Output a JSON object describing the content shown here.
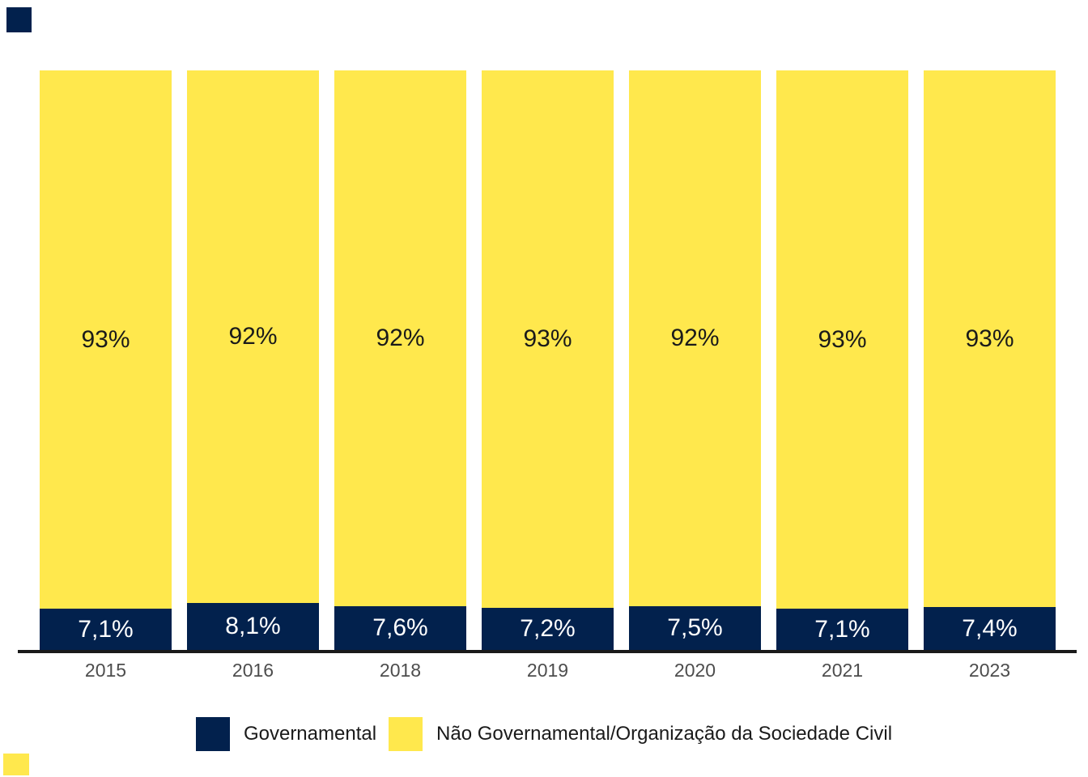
{
  "chart_data": {
    "type": "bar",
    "stacked": true,
    "orientation": "vertical",
    "title": "",
    "xlabel": "",
    "ylabel": "",
    "ylim": [
      0,
      100
    ],
    "grid": false,
    "legend_position": "bottom",
    "categories": [
      "2015",
      "2016",
      "2018",
      "2019",
      "2020",
      "2021",
      "2023"
    ],
    "series": [
      {
        "name": "Governamental",
        "color": "#02214d",
        "values": [
          7.1,
          8.1,
          7.6,
          7.2,
          7.5,
          7.1,
          7.4
        ],
        "labels": [
          "7,1%",
          "8,1%",
          "7,6%",
          "7,2%",
          "7,5%",
          "7,1%",
          "7,4%"
        ],
        "label_color": "#ffffff"
      },
      {
        "name": "Não Governamental/Organização da Sociedade Civil",
        "color": "#ffe84d",
        "values": [
          93,
          92,
          92,
          93,
          92,
          93,
          93
        ],
        "labels": [
          "93%",
          "92%",
          "92%",
          "93%",
          "92%",
          "93%",
          "93%"
        ],
        "label_color": "#1a1a1a"
      }
    ]
  },
  "legend": {
    "items": [
      {
        "label": "Governamental",
        "color": "#02214d"
      },
      {
        "label": "Não Governamental/Organização da Sociedade Civil",
        "color": "#ffe84d"
      }
    ]
  },
  "axis": {
    "color": "#1a1a1a",
    "tick_label_color": "#4d4d4d"
  },
  "artifacts": {
    "top_left_swatch_color": "#02214d",
    "bottom_left_swatch_color": "#ffe84d"
  }
}
